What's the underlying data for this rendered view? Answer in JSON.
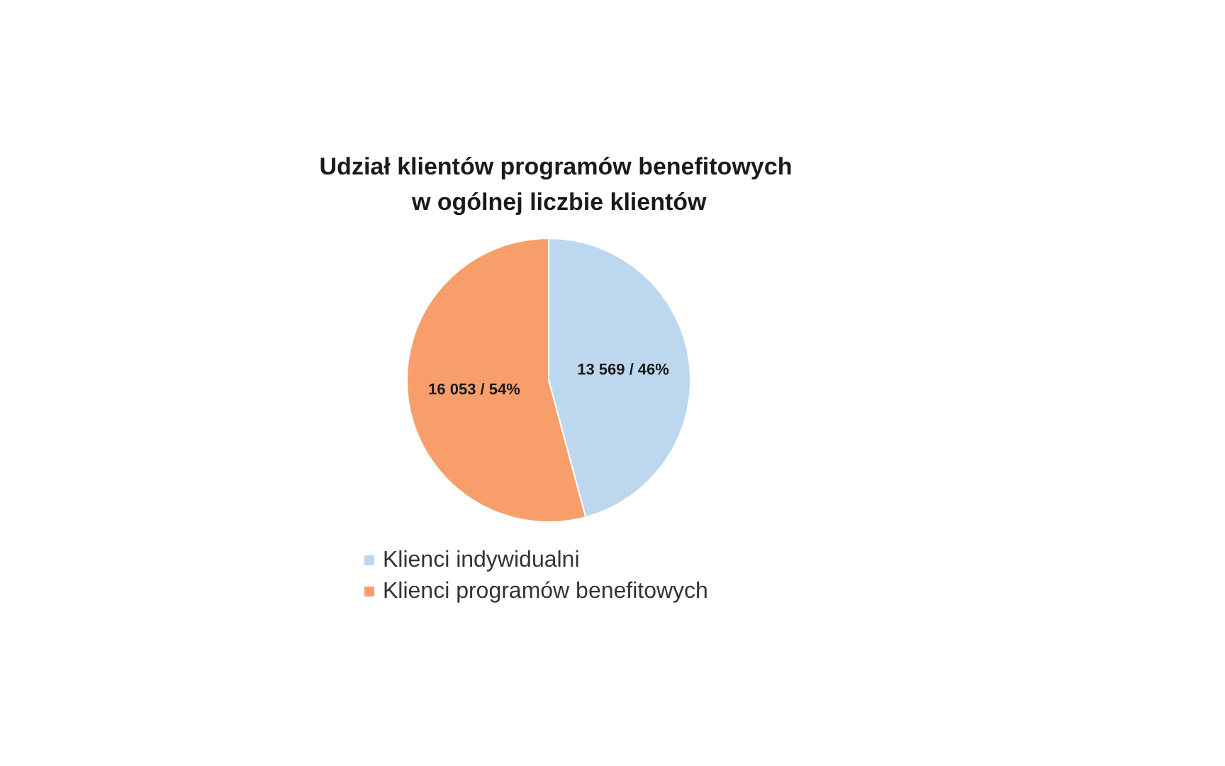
{
  "chart_data": {
    "type": "pie",
    "title": "Udział klientów programów benefitowych w ogólnej liczbie klientów",
    "categories": [
      "Klienci indywidualni",
      "Klienci programów benefitowych"
    ],
    "values": [
      13569,
      16053
    ],
    "colors": [
      "#bdd7ee",
      "#f79e6a"
    ],
    "value_labels": [
      "13 569 / 46%",
      "16 053 / 54%"
    ],
    "legend": "bottom"
  }
}
